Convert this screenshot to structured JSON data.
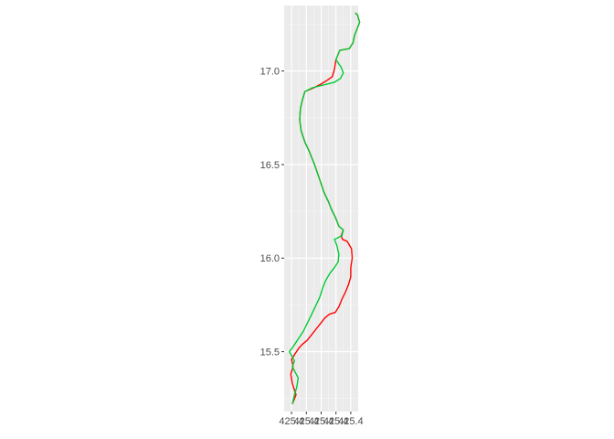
{
  "chart_data": {
    "type": "line",
    "title": "",
    "xlabel": "",
    "ylabel": "",
    "grid": true,
    "xlim": [
      425.35,
      425.45
    ],
    "ylim": [
      15.18,
      17.35
    ],
    "x_ticks": [
      {
        "value": 425.36,
        "label": "425.4"
      },
      {
        "value": 425.38,
        "label": "425.4"
      },
      {
        "value": 425.4,
        "label": "425.4"
      },
      {
        "value": 425.42,
        "label": "425.4"
      },
      {
        "value": 425.44,
        "label": "425.4"
      }
    ],
    "y_ticks": [
      {
        "value": 15.5,
        "label": "15.5"
      },
      {
        "value": 16.0,
        "label": "16.0"
      },
      {
        "value": 16.5,
        "label": "16.5"
      },
      {
        "value": 17.0,
        "label": "17.0"
      }
    ],
    "series": [
      {
        "color": "#ff0000",
        "points": [
          [
            425.361,
            15.22
          ],
          [
            425.366,
            15.27
          ],
          [
            425.361,
            15.33
          ],
          [
            425.359,
            15.38
          ],
          [
            425.362,
            15.42
          ],
          [
            425.36,
            15.46
          ],
          [
            425.365,
            15.49
          ],
          [
            425.37,
            15.52
          ],
          [
            425.375,
            15.54
          ],
          [
            425.381,
            15.56
          ],
          [
            425.387,
            15.59
          ],
          [
            425.393,
            15.62
          ],
          [
            425.399,
            15.65
          ],
          [
            425.405,
            15.68
          ],
          [
            425.411,
            15.7
          ],
          [
            425.419,
            15.71
          ],
          [
            425.424,
            15.74
          ],
          [
            425.428,
            15.78
          ],
          [
            425.433,
            15.82
          ],
          [
            425.437,
            15.86
          ],
          [
            425.44,
            15.9
          ],
          [
            425.44,
            15.95
          ],
          [
            425.442,
            16.0
          ],
          [
            425.441,
            16.05
          ],
          [
            425.435,
            16.09
          ],
          [
            425.429,
            16.1
          ],
          [
            425.427,
            16.12
          ],
          [
            425.43,
            16.15
          ],
          [
            425.424,
            16.17
          ],
          [
            425.419,
            16.22
          ],
          [
            425.414,
            16.26
          ],
          [
            425.41,
            16.3
          ],
          [
            425.404,
            16.35
          ],
          [
            425.398,
            16.42
          ],
          [
            425.391,
            16.5
          ],
          [
            425.384,
            16.57
          ],
          [
            425.378,
            16.62
          ],
          [
            425.373,
            16.68
          ],
          [
            425.371,
            16.74
          ],
          [
            425.372,
            16.8
          ],
          [
            425.375,
            16.85
          ],
          [
            425.378,
            16.89
          ],
          [
            425.39,
            16.91
          ],
          [
            425.4,
            16.93
          ],
          [
            425.408,
            16.95
          ],
          [
            425.415,
            16.97
          ],
          [
            425.418,
            17.01
          ],
          [
            425.42,
            17.06
          ],
          [
            425.425,
            17.11
          ],
          [
            425.438,
            17.12
          ],
          [
            425.443,
            17.15
          ],
          [
            425.445,
            17.19
          ],
          [
            425.448,
            17.22
          ],
          [
            425.452,
            17.26
          ],
          [
            425.449,
            17.3
          ],
          [
            425.446,
            17.31
          ]
        ]
      },
      {
        "color": "#00cc33",
        "points": [
          [
            425.361,
            15.22
          ],
          [
            425.364,
            15.27
          ],
          [
            425.367,
            15.31
          ],
          [
            425.369,
            15.36
          ],
          [
            425.365,
            15.39
          ],
          [
            425.361,
            15.42
          ],
          [
            425.364,
            15.45
          ],
          [
            425.36,
            15.48
          ],
          [
            425.357,
            15.5
          ],
          [
            425.361,
            15.52
          ],
          [
            425.366,
            15.55
          ],
          [
            425.371,
            15.58
          ],
          [
            425.376,
            15.61
          ],
          [
            425.381,
            15.65
          ],
          [
            425.386,
            15.69
          ],
          [
            425.392,
            15.74
          ],
          [
            425.398,
            15.79
          ],
          [
            425.402,
            15.84
          ],
          [
            425.406,
            15.88
          ],
          [
            425.412,
            15.92
          ],
          [
            425.418,
            15.95
          ],
          [
            425.423,
            15.98
          ],
          [
            425.424,
            16.02
          ],
          [
            425.421,
            16.07
          ],
          [
            425.418,
            16.1
          ],
          [
            425.428,
            16.12
          ],
          [
            425.43,
            16.15
          ],
          [
            425.424,
            16.17
          ],
          [
            425.419,
            16.22
          ],
          [
            425.414,
            16.26
          ],
          [
            425.41,
            16.3
          ],
          [
            425.404,
            16.35
          ],
          [
            425.398,
            16.42
          ],
          [
            425.391,
            16.5
          ],
          [
            425.384,
            16.57
          ],
          [
            425.378,
            16.62
          ],
          [
            425.373,
            16.68
          ],
          [
            425.371,
            16.74
          ],
          [
            425.372,
            16.8
          ],
          [
            425.375,
            16.85
          ],
          [
            425.378,
            16.89
          ],
          [
            425.388,
            16.91
          ],
          [
            425.398,
            16.92
          ],
          [
            425.408,
            16.93
          ],
          [
            425.418,
            16.94
          ],
          [
            425.426,
            16.96
          ],
          [
            425.43,
            16.99
          ],
          [
            425.427,
            17.02
          ],
          [
            425.42,
            17.06
          ],
          [
            425.425,
            17.11
          ],
          [
            425.438,
            17.12
          ],
          [
            425.443,
            17.15
          ],
          [
            425.445,
            17.19
          ],
          [
            425.448,
            17.22
          ],
          [
            425.452,
            17.26
          ],
          [
            425.449,
            17.3
          ],
          [
            425.446,
            17.31
          ]
        ]
      }
    ]
  }
}
